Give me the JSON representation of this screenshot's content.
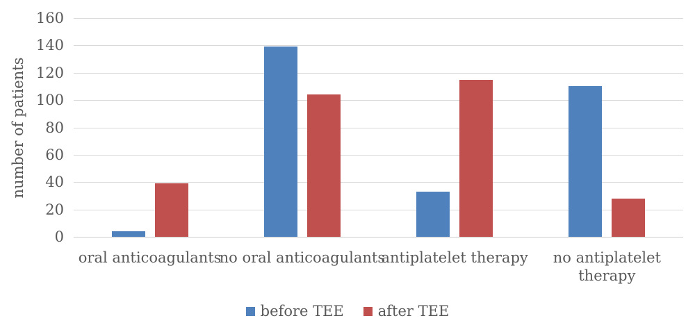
{
  "chart_data": {
    "type": "bar",
    "title": "",
    "xlabel": "",
    "ylabel": "number of patients",
    "ylim": [
      0,
      160
    ],
    "yticks": [
      0,
      20,
      40,
      60,
      80,
      100,
      120,
      140,
      160
    ],
    "grid": true,
    "legend_position": "bottom",
    "categories": [
      "oral anticoagulants",
      "no oral anticoagulants",
      "antiplatelet therapy",
      "no antiplatelet\ntherapy"
    ],
    "series": [
      {
        "name": "before TEE",
        "color": "#4F81BD",
        "values": [
          4,
          139,
          33,
          110
        ]
      },
      {
        "name": "after TEE",
        "color": "#C0504D",
        "values": [
          39,
          104,
          115,
          28
        ]
      }
    ],
    "colors": {
      "text": "#595959",
      "gridline": "#d9d9d9",
      "axis_line": "#cdcdcd",
      "background": "#ffffff"
    }
  }
}
